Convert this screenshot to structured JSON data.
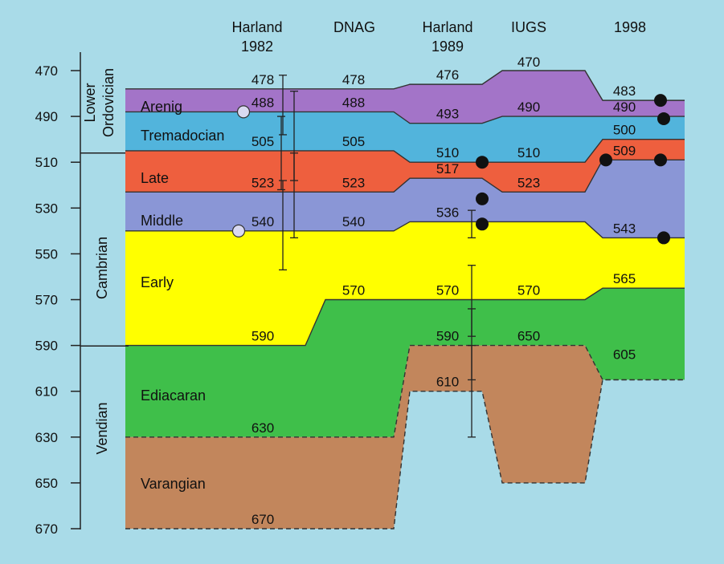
{
  "chart_data": {
    "type": "area",
    "title": "",
    "xlabel": "",
    "ylabel": "",
    "ylim": [
      465,
      672
    ],
    "y_ticks": [
      "470",
      "490",
      "510",
      "530",
      "550",
      "570",
      "590",
      "610",
      "630",
      "650",
      "670"
    ],
    "columns": [
      {
        "name": "Harland 1982",
        "line1": "Harland",
        "line2": "1982"
      },
      {
        "name": "DNAG",
        "line1": "DNAG",
        "line2": ""
      },
      {
        "name": "Harland 1989",
        "line1": "Harland",
        "line2": "1989"
      },
      {
        "name": "IUGS",
        "line1": "IUGS",
        "line2": ""
      },
      {
        "name": "1998",
        "line1": "1998",
        "line2": ""
      }
    ],
    "divisions": [
      {
        "name": "Lower Ordovician",
        "line1": "Lower",
        "line2": "Ordovician",
        "range": [
          465,
          505
        ]
      },
      {
        "name": "Cambrian",
        "line1": "Cambrian",
        "line2": "",
        "range": [
          505,
          590
        ]
      },
      {
        "name": "Vendian",
        "line1": "Vendian",
        "line2": "",
        "range": [
          590,
          672
        ]
      }
    ],
    "stage_names": [
      "Arenig",
      "Tremadocian",
      "Late",
      "Middle",
      "Early",
      "Ediacaran",
      "Varangian"
    ],
    "stage_colors": [
      "#a374c8",
      "#52b4dc",
      "#ee5f3e",
      "#8a96d6",
      "#ffff00",
      "#3fbf4a",
      "#c2865c"
    ],
    "boundaries_by_column": [
      [
        478,
        488,
        505,
        523,
        540,
        590,
        630,
        670
      ],
      [
        478,
        488,
        505,
        523,
        540,
        570,
        630,
        670
      ],
      [
        476,
        493,
        510,
        517,
        536,
        570,
        590,
        610
      ],
      [
        470,
        490,
        510,
        523,
        536,
        570,
        590,
        650
      ],
      [
        483,
        490,
        500,
        509,
        543,
        565,
        605,
        605
      ]
    ],
    "value_labels": [
      [
        "478",
        "488",
        "505",
        "523",
        "540",
        "590",
        "630",
        "670"
      ],
      [
        "478",
        "488",
        "505",
        "523",
        "540",
        "570"
      ],
      [
        "476",
        "493",
        "510",
        "517",
        "536",
        "570",
        "590",
        "610"
      ],
      [
        "470",
        "490",
        "510",
        "523",
        "570",
        "650"
      ],
      [
        "483",
        "490",
        "500",
        "509",
        "543",
        "565",
        "605"
      ]
    ],
    "open_points": [
      488,
      540
    ],
    "filled_points": [
      {
        "column": "Harland 1989",
        "values": [
          510,
          526,
          537
        ]
      },
      {
        "column": "1998",
        "values": [
          483,
          491,
          509,
          509,
          543
        ]
      }
    ],
    "error_bars": [
      {
        "column": "Harland 1982",
        "ranges": [
          [
            472,
            498
          ],
          [
            479,
            518
          ],
          [
            490,
            522
          ],
          [
            506,
            543
          ],
          [
            518,
            557
          ]
        ]
      },
      {
        "column": "Harland 1989",
        "ranges": [
          [
            531,
            543
          ],
          [
            555,
            586
          ],
          [
            574,
            605
          ],
          [
            590,
            630
          ]
        ]
      }
    ]
  }
}
